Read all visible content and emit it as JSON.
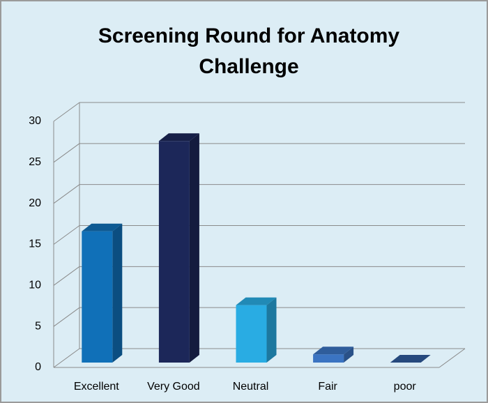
{
  "chart_data": {
    "type": "bar3d",
    "title": "Screening Round for Anatomy Challenge",
    "categories": [
      "Excellent",
      "Very Good",
      "Neutral",
      "Fair",
      "poor"
    ],
    "values": [
      16,
      27,
      7,
      1,
      0
    ],
    "colors": [
      "#1070b8",
      "#1c2759",
      "#29ace3",
      "#3b74c2",
      "#2f5b9c"
    ],
    "ylim": [
      0,
      30
    ],
    "yticks": [
      0,
      5,
      10,
      15,
      20,
      25,
      30
    ],
    "grid": true
  }
}
